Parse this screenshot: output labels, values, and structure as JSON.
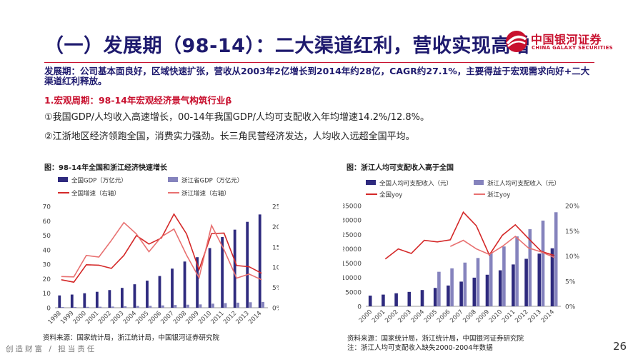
{
  "header": {
    "title": "（一）发展期（98-14）：二大渠道红利，营收实现高增",
    "logo_cn": "中国银河证券",
    "logo_en": "CHINA GALAXY SECURITIES"
  },
  "intro": "发展期：公司基本面良好，区域快速扩张，营收从2003年2亿增长到2014年约28亿，CAGR约27.1%，主要得益于宏观需求向好+二大渠道红利释放。",
  "section": "1.宏观周期：98-14年宏观经济景气构筑行业β",
  "points": [
    "①我国GDP/人均收入高速增长，00-14年我国GDP/人均可支配收入年均增速14.2%/12.8%。",
    "②江浙地区经济领跑全国，消费实力强劲。长三角民营经济发达，人均收入远超全国平均。"
  ],
  "colors": {
    "navy": "#2e2a7e",
    "lavender": "#8583bd",
    "red": "#d42828",
    "pink": "#e87070",
    "accent": "#c8102e"
  },
  "chart_data": [
    {
      "type": "bar",
      "title": "图：98-14年全国和浙江经济快速增长",
      "categories": [
        "1998",
        "1999",
        "2000",
        "2001",
        "2002",
        "2003",
        "2004",
        "2005",
        "2006",
        "2007",
        "2008",
        "2009",
        "2010",
        "2011",
        "2012",
        "2013",
        "2014"
      ],
      "ylim": [
        0,
        70
      ],
      "yticks": [
        0,
        10,
        20,
        30,
        40,
        50,
        60,
        70
      ],
      "y2lim": [
        0,
        25
      ],
      "y2ticks": [
        "0%",
        "5%",
        "10%",
        "15%",
        "20%",
        "25%"
      ],
      "series": [
        {
          "name": "全国GDP（万亿元）",
          "kind": "bar",
          "axis": "left",
          "values": [
            8.5,
            9.1,
            10.0,
            11.0,
            12.2,
            13.7,
            16.2,
            18.7,
            21.9,
            27.0,
            31.9,
            34.9,
            41.2,
            48.8,
            53.9,
            59.3,
            64.4
          ]
        },
        {
          "name": "浙江省GDP（万亿元）",
          "kind": "bar",
          "axis": "left",
          "values": [
            0.5,
            0.5,
            0.6,
            0.7,
            0.8,
            1.0,
            1.2,
            1.3,
            1.6,
            1.9,
            2.1,
            2.3,
            2.8,
            3.2,
            3.5,
            3.8,
            4.0
          ]
        },
        {
          "name": "全国增速（右轴）",
          "kind": "line",
          "axis": "right",
          "values": [
            6.9,
            6.3,
            10.6,
            10.5,
            9.7,
            12.9,
            17.8,
            15.7,
            17.2,
            23.1,
            18.2,
            9.4,
            18.3,
            18.4,
            10.4,
            10.1,
            8.5
          ]
        },
        {
          "name": "浙江增速（右轴）",
          "kind": "line",
          "axis": "right",
          "values": [
            7.7,
            7.6,
            12.9,
            12.5,
            16.6,
            21.0,
            18.2,
            13.8,
            17.5,
            19.4,
            13.0,
            7.4,
            20.3,
            14.3,
            7.3,
            8.3,
            6.9
          ]
        }
      ],
      "source": "资料来源：国家统计局，浙江统计局，中国银河证券研究院"
    },
    {
      "type": "bar",
      "title": "图：浙江人均可支配收入高于全国",
      "categories": [
        "2000",
        "2001",
        "2002",
        "2003",
        "2004",
        "2005",
        "2006",
        "2007",
        "2008",
        "2009",
        "2010",
        "2011",
        "2012",
        "2013",
        "2014"
      ],
      "ylim": [
        0,
        35000
      ],
      "yticks": [
        0,
        5000,
        10000,
        15000,
        20000,
        25000,
        30000,
        35000
      ],
      "y2lim": [
        0,
        20
      ],
      "y2ticks": [
        "0%",
        "5%",
        "10%",
        "15%",
        "20%"
      ],
      "series": [
        {
          "name": "全国人均可支配收入（元）",
          "kind": "bar",
          "axis": "left",
          "values": [
            3721,
            4070,
            4532,
            5007,
            5661,
            6385,
            7229,
            8584,
            9957,
            10977,
            12520,
            14551,
            16510,
            18311,
            20167
          ]
        },
        {
          "name": "浙江人均可支配收入（元）",
          "kind": "bar",
          "axis": "left",
          "values": [
            null,
            null,
            null,
            null,
            null,
            12000,
            13200,
            15200,
            16800,
            18600,
            20800,
            24300,
            26800,
            29800,
            32700
          ]
        },
        {
          "name": "全国yoy",
          "kind": "line",
          "axis": "right",
          "values": [
            null,
            9.4,
            11.4,
            10.5,
            13.1,
            12.8,
            13.2,
            18.7,
            16.0,
            10.2,
            14.1,
            16.2,
            13.5,
            10.9,
            10.1
          ]
        },
        {
          "name": "浙江yoy",
          "kind": "line",
          "axis": "right",
          "values": [
            null,
            null,
            null,
            null,
            null,
            null,
            11.9,
            13.1,
            11.4,
            10.3,
            11.9,
            13.9,
            11.6,
            10.8,
            9.7
          ]
        }
      ],
      "source": "资料来源：国家统计局，浙江统计局，中国银河证券研究院",
      "note": "注：浙江人均可支配收入缺失2000-2004年数据"
    }
  ],
  "footer": {
    "slogan": "创造财富 / 担当责任",
    "page": "26"
  }
}
